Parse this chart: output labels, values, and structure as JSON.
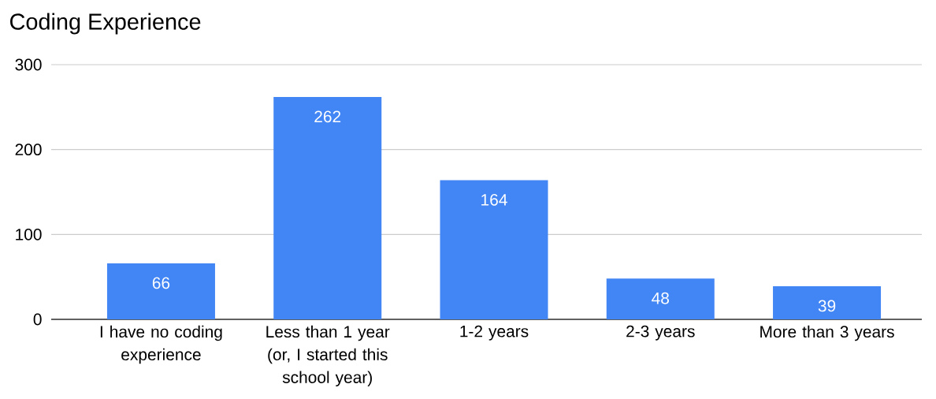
{
  "chart_data": {
    "type": "bar",
    "title": "Coding Experience",
    "categories": [
      "I have no coding experience",
      "Less than 1 year (or, I started this school year)",
      "1-2 years",
      "2-3 years",
      "More than 3 years"
    ],
    "values": [
      66,
      262,
      164,
      48,
      39
    ],
    "color": "#4285f4",
    "ylim": [
      0,
      300
    ],
    "yticks": [
      0,
      100,
      200,
      300
    ],
    "grid": "y",
    "data_labels": true
  }
}
